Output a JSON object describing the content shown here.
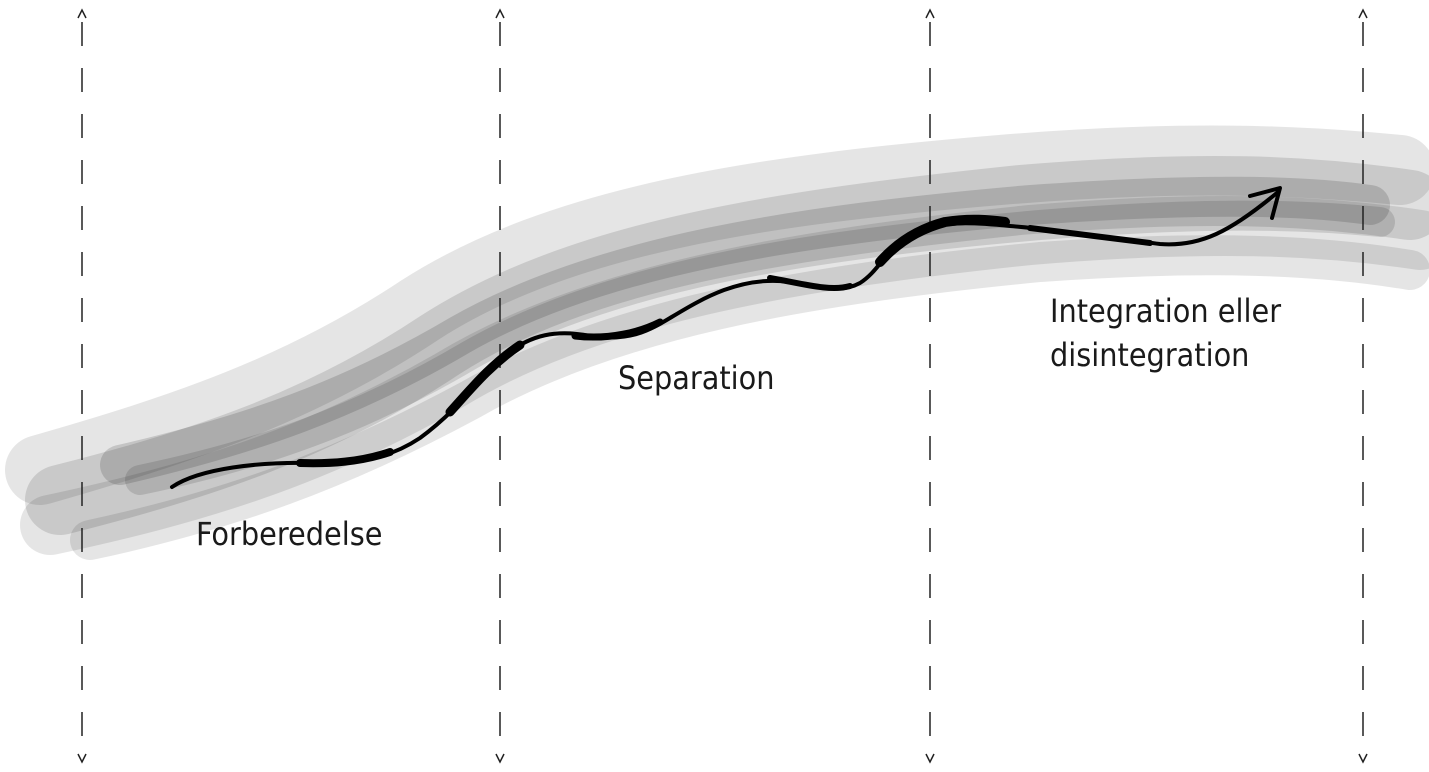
{
  "diagram": {
    "phases": [
      {
        "label": "Forberedelse"
      },
      {
        "label": "Separation"
      },
      {
        "label": "Integration eller\ndisintegration"
      }
    ],
    "colors": {
      "band": "#6e6e6e",
      "line": "#000000",
      "divider": "#222222"
    }
  }
}
